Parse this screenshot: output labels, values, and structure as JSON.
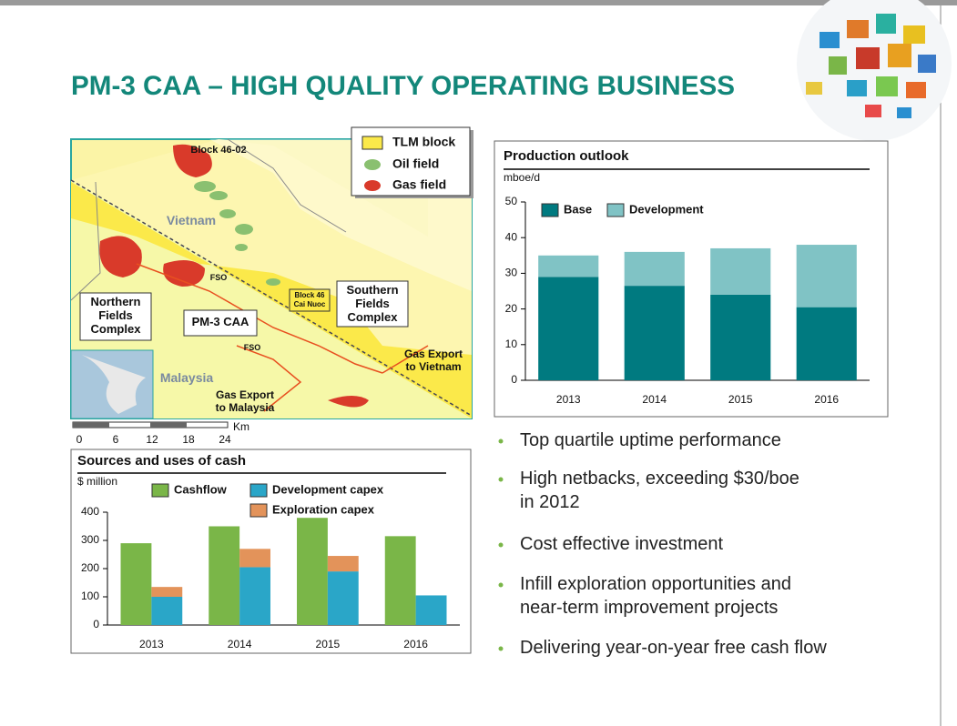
{
  "title": "PM-3 CAA – HIGH QUALITY OPERATING BUSINESS",
  "map": {
    "legend": [
      "TLM block",
      "Oil field",
      "Gas field"
    ],
    "labels": [
      [
        "Block 46-02"
      ],
      [
        "Vietnam"
      ],
      [
        "FSO"
      ],
      [
        "FSO"
      ],
      [
        "Northern",
        "Fields",
        "Complex"
      ],
      [
        "PM-3 CAA"
      ],
      [
        "Block 46",
        "Cai Nuoc"
      ],
      [
        "Southern",
        "Fields",
        "Complex"
      ],
      [
        "Gas Export",
        "to Vietnam"
      ],
      [
        "Malaysia"
      ],
      [
        "Gas Export",
        "to Malaysia"
      ]
    ],
    "scale": [
      0,
      6,
      12,
      18,
      24
    ],
    "scale_unit": "Km"
  },
  "chart_data": [
    {
      "type": "bar",
      "title": "Production outlook",
      "y_label": "mboe/d",
      "categories": [
        "2013",
        "2014",
        "2015",
        "2016"
      ],
      "series": [
        {
          "name": "Base",
          "color": "#007a80",
          "stack": 0,
          "values": [
            29,
            26.5,
            24,
            20.5
          ]
        },
        {
          "name": "Development",
          "color": "#80c3c5",
          "stack": 0,
          "values": [
            6,
            9.5,
            13,
            17.5
          ]
        }
      ],
      "ylim": [
        0,
        50
      ],
      "yticks": [
        0,
        10,
        20,
        30,
        40,
        50
      ]
    },
    {
      "type": "bar",
      "title": "Sources and uses of cash",
      "y_label": "$ million",
      "categories": [
        "2013",
        "2014",
        "2015",
        "2016"
      ],
      "series": [
        {
          "name": "Cashflow",
          "color": "#7ab648",
          "stack": 0,
          "values": [
            290,
            350,
            380,
            315
          ]
        },
        {
          "name": "Development capex",
          "color": "#2aa6c8",
          "stack": 1,
          "values": [
            100,
            205,
            190,
            105
          ]
        },
        {
          "name": "Exploration capex",
          "color": "#e3935a",
          "stack": 1,
          "values": [
            35,
            65,
            55,
            0
          ]
        }
      ],
      "ylim": [
        0,
        400
      ],
      "yticks": [
        0,
        100,
        200,
        300,
        400
      ]
    }
  ],
  "bullets": [
    [
      "Top quartile uptime performance"
    ],
    [
      "High netbacks, exceeding $30/boe",
      "in 2012"
    ],
    [
      "Cost effective investment"
    ],
    [
      "Infill exploration opportunities and",
      "near-term improvement projects"
    ],
    [
      "Delivering year-on-year free cash flow"
    ]
  ]
}
